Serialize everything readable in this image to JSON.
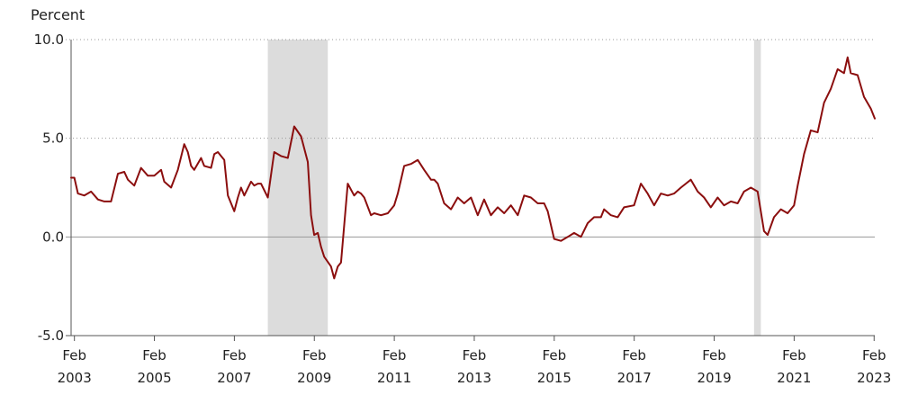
{
  "chart_data": {
    "type": "line",
    "ylabel": "Percent",
    "ylim": [
      -5,
      10
    ],
    "yticks": [
      {
        "value": 10,
        "label": "10.0"
      },
      {
        "value": 5,
        "label": "5.0"
      },
      {
        "value": 0,
        "label": "0.0"
      },
      {
        "value": -5,
        "label": "-5.0"
      }
    ],
    "xlim": [
      2003.0,
      2023.1
    ],
    "xticks": [
      {
        "value": 2003.083,
        "month": "Feb",
        "year": "2003"
      },
      {
        "value": 2005.083,
        "month": "Feb",
        "year": "2005"
      },
      {
        "value": 2007.083,
        "month": "Feb",
        "year": "2007"
      },
      {
        "value": 2009.083,
        "month": "Feb",
        "year": "2009"
      },
      {
        "value": 2011.083,
        "month": "Feb",
        "year": "2011"
      },
      {
        "value": 2013.083,
        "month": "Feb",
        "year": "2013"
      },
      {
        "value": 2015.083,
        "month": "Feb",
        "year": "2015"
      },
      {
        "value": 2017.083,
        "month": "Feb",
        "year": "2017"
      },
      {
        "value": 2019.083,
        "month": "Feb",
        "year": "2019"
      },
      {
        "value": 2021.083,
        "month": "Feb",
        "year": "2021"
      },
      {
        "value": 2023.083,
        "month": "Feb",
        "year": "2023"
      }
    ],
    "grid": "horizontal-dotted",
    "recessions": [
      {
        "start": 2007.92,
        "end": 2009.42
      },
      {
        "start": 2020.08,
        "end": 2020.25
      }
    ],
    "line_color": "#8b0e0e",
    "recession_color": "#dcdcdc",
    "series": [
      {
        "x": [
          2003.0,
          2003.08,
          2003.17,
          2003.33,
          2003.5,
          2003.67,
          2003.83,
          2004.0,
          2004.17,
          2004.33,
          2004.42,
          2004.58,
          2004.75,
          2004.92,
          2005.08,
          2005.25,
          2005.33,
          2005.5,
          2005.67,
          2005.83,
          2005.92,
          2006.0,
          2006.08,
          2006.25,
          2006.33,
          2006.5,
          2006.58,
          2006.67,
          2006.75,
          2006.83,
          2006.92,
          2007.08,
          2007.17,
          2007.25,
          2007.33,
          2007.5,
          2007.58,
          2007.67,
          2007.75,
          2007.92,
          2008.08,
          2008.25,
          2008.42,
          2008.58,
          2008.75,
          2008.92,
          2009.0,
          2009.08,
          2009.17,
          2009.25,
          2009.33,
          2009.5,
          2009.58,
          2009.67,
          2009.75,
          2009.92,
          2010.08,
          2010.17,
          2010.25,
          2010.33,
          2010.5,
          2010.58,
          2010.75,
          2010.92,
          2011.08,
          2011.17,
          2011.33,
          2011.5,
          2011.67,
          2011.83,
          2012.0,
          2012.08,
          2012.17,
          2012.33,
          2012.5,
          2012.67,
          2012.83,
          2013.0,
          2013.17,
          2013.33,
          2013.5,
          2013.67,
          2013.83,
          2014.0,
          2014.17,
          2014.33,
          2014.5,
          2014.67,
          2014.83,
          2014.92,
          2015.08,
          2015.25,
          2015.42,
          2015.58,
          2015.75,
          2015.92,
          2016.08,
          2016.25,
          2016.33,
          2016.5,
          2016.67,
          2016.83,
          2017.08,
          2017.25,
          2017.42,
          2017.58,
          2017.75,
          2017.92,
          2018.08,
          2018.25,
          2018.5,
          2018.67,
          2018.83,
          2019.0,
          2019.17,
          2019.33,
          2019.5,
          2019.67,
          2019.83,
          2020.0,
          2020.17,
          2020.33,
          2020.42,
          2020.58,
          2020.75,
          2020.92,
          2021.08,
          2021.17,
          2021.33,
          2021.5,
          2021.67,
          2021.83,
          2022.0,
          2022.17,
          2022.33,
          2022.42,
          2022.5,
          2022.67,
          2022.83,
          2023.0,
          2023.1
        ],
        "y": [
          3.0,
          3.0,
          2.2,
          2.1,
          2.3,
          1.9,
          1.8,
          1.8,
          3.2,
          3.3,
          2.9,
          2.6,
          3.5,
          3.1,
          3.1,
          3.4,
          2.8,
          2.5,
          3.4,
          4.7,
          4.3,
          3.6,
          3.4,
          4.0,
          3.6,
          3.5,
          4.2,
          4.3,
          4.1,
          3.9,
          2.1,
          1.3,
          2.0,
          2.5,
          2.1,
          2.8,
          2.6,
          2.7,
          2.7,
          2.0,
          4.3,
          4.1,
          4.0,
          5.6,
          5.1,
          3.8,
          1.1,
          0.1,
          0.2,
          -0.5,
          -1.0,
          -1.5,
          -2.1,
          -1.5,
          -1.3,
          2.7,
          2.1,
          2.3,
          2.2,
          2.0,
          1.1,
          1.2,
          1.1,
          1.2,
          1.6,
          2.2,
          3.6,
          3.7,
          3.9,
          3.4,
          2.9,
          2.9,
          2.7,
          1.7,
          1.4,
          2.0,
          1.7,
          2.0,
          1.1,
          1.9,
          1.1,
          1.5,
          1.2,
          1.6,
          1.1,
          2.1,
          2.0,
          1.7,
          1.7,
          1.3,
          -0.1,
          -0.2,
          0.0,
          0.2,
          0.0,
          0.7,
          1.0,
          1.0,
          1.4,
          1.1,
          1.0,
          1.5,
          1.6,
          2.7,
          2.2,
          1.6,
          2.2,
          2.1,
          2.2,
          2.5,
          2.9,
          2.3,
          2.0,
          1.5,
          2.0,
          1.6,
          1.8,
          1.7,
          2.3,
          2.5,
          2.3,
          0.3,
          0.1,
          1.0,
          1.4,
          1.2,
          1.6,
          2.6,
          4.2,
          5.4,
          5.3,
          6.8,
          7.5,
          8.5,
          8.3,
          9.1,
          8.3,
          8.2,
          7.1,
          6.5,
          6.0
        ]
      }
    ]
  }
}
